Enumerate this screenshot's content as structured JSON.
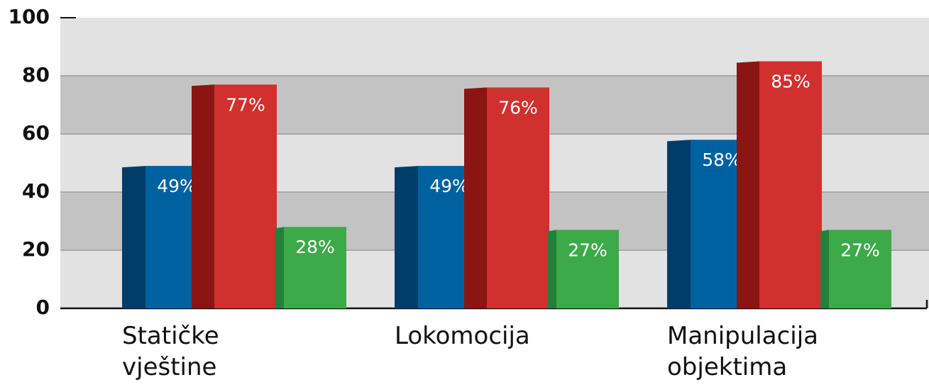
{
  "chart_data": {
    "type": "bar",
    "categories": [
      "Statičke vještine",
      "Lokomocija",
      "Manipulacija objektima"
    ],
    "series": [
      {
        "color": "#0061a0",
        "values": [
          49,
          49,
          58
        ],
        "value_labels": [
          "49%",
          "49%",
          "58%"
        ]
      },
      {
        "color": "#d0302e",
        "values": [
          77,
          76,
          85
        ],
        "value_labels": [
          "77%",
          "76%",
          "85%"
        ]
      },
      {
        "color": "#3caa48",
        "values": [
          28,
          27,
          27
        ],
        "value_labels": [
          "28%",
          "27%",
          "27%"
        ]
      }
    ],
    "ylim": [
      0,
      100
    ],
    "yticks": [
      0,
      20,
      40,
      60,
      80,
      100
    ],
    "grid": true
  }
}
